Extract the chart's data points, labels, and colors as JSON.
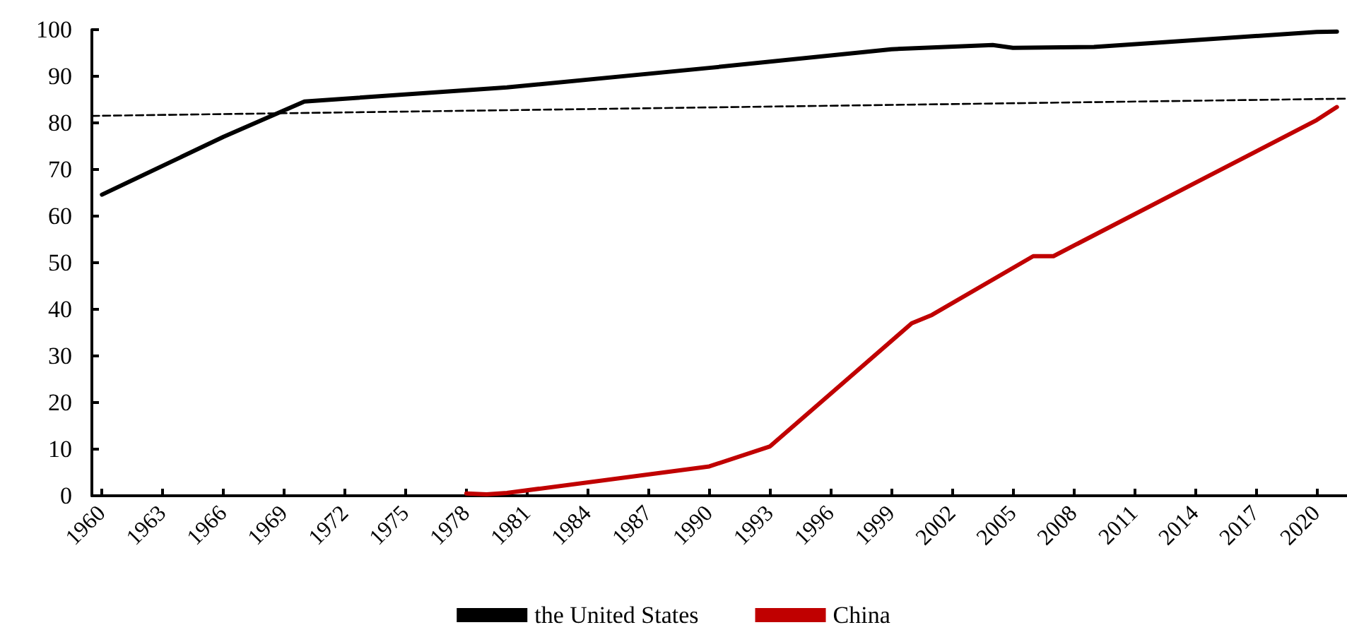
{
  "chart_data": {
    "type": "line",
    "xlim": [
      1959.5,
      2021.5
    ],
    "xticks": [
      1960,
      1963,
      1966,
      1969,
      1972,
      1975,
      1978,
      1981,
      1984,
      1987,
      1990,
      1993,
      1996,
      1999,
      2002,
      2005,
      2008,
      2011,
      2014,
      2017,
      2020
    ],
    "ylim": [
      0,
      100
    ],
    "yticks": [
      0,
      10,
      20,
      30,
      40,
      50,
      60,
      70,
      80,
      90,
      100
    ],
    "grid": false,
    "legend": "bottom",
    "marker": "none",
    "series": [
      {
        "name": "the United States",
        "color": "#000000",
        "x": [
          1960,
          1966,
          1970,
          1980,
          1990,
          1999,
          2004,
          2005,
          2009,
          2020,
          2021
        ],
        "values": [
          64.6,
          77,
          84.6,
          87.6,
          91.8,
          95.8,
          96.7,
          96.1,
          96.3,
          99.5,
          99.6
        ]
      },
      {
        "name": "China",
        "color": "#c00000",
        "x": [
          1978,
          1979,
          1980,
          1990,
          1993,
          2000,
          2001,
          2006,
          2007,
          2020,
          2021
        ],
        "values": [
          0.5,
          0.3,
          0.6,
          6.3,
          10.6,
          37.0,
          38.8,
          51.4,
          51.4,
          80.6,
          83.4
        ]
      },
      {
        "type": "line",
        "color": "#000000",
        "line_style": "dashed",
        "x": [
          1959.5,
          2021.5
        ],
        "values": [
          81.5,
          85.2
        ]
      }
    ]
  }
}
